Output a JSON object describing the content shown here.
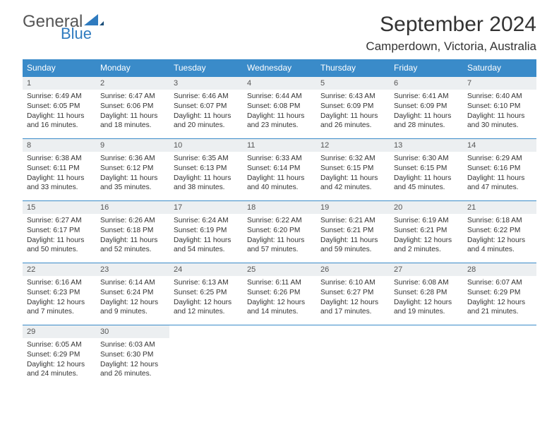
{
  "brand": {
    "general": "General",
    "blue": "Blue"
  },
  "title": "September 2024",
  "location": "Camperdown, Victoria, Australia",
  "colors": {
    "header_bg": "#3a8bc9",
    "header_text": "#ffffff",
    "daynum_bg": "#eceff1",
    "border": "#3a8bc9",
    "logo_blue": "#2f7bbf"
  },
  "day_headers": [
    "Sunday",
    "Monday",
    "Tuesday",
    "Wednesday",
    "Thursday",
    "Friday",
    "Saturday"
  ],
  "weeks": [
    [
      {
        "n": "1",
        "sunrise": "Sunrise: 6:49 AM",
        "sunset": "Sunset: 6:05 PM",
        "daylight": "Daylight: 11 hours and 16 minutes."
      },
      {
        "n": "2",
        "sunrise": "Sunrise: 6:47 AM",
        "sunset": "Sunset: 6:06 PM",
        "daylight": "Daylight: 11 hours and 18 minutes."
      },
      {
        "n": "3",
        "sunrise": "Sunrise: 6:46 AM",
        "sunset": "Sunset: 6:07 PM",
        "daylight": "Daylight: 11 hours and 20 minutes."
      },
      {
        "n": "4",
        "sunrise": "Sunrise: 6:44 AM",
        "sunset": "Sunset: 6:08 PM",
        "daylight": "Daylight: 11 hours and 23 minutes."
      },
      {
        "n": "5",
        "sunrise": "Sunrise: 6:43 AM",
        "sunset": "Sunset: 6:09 PM",
        "daylight": "Daylight: 11 hours and 26 minutes."
      },
      {
        "n": "6",
        "sunrise": "Sunrise: 6:41 AM",
        "sunset": "Sunset: 6:09 PM",
        "daylight": "Daylight: 11 hours and 28 minutes."
      },
      {
        "n": "7",
        "sunrise": "Sunrise: 6:40 AM",
        "sunset": "Sunset: 6:10 PM",
        "daylight": "Daylight: 11 hours and 30 minutes."
      }
    ],
    [
      {
        "n": "8",
        "sunrise": "Sunrise: 6:38 AM",
        "sunset": "Sunset: 6:11 PM",
        "daylight": "Daylight: 11 hours and 33 minutes."
      },
      {
        "n": "9",
        "sunrise": "Sunrise: 6:36 AM",
        "sunset": "Sunset: 6:12 PM",
        "daylight": "Daylight: 11 hours and 35 minutes."
      },
      {
        "n": "10",
        "sunrise": "Sunrise: 6:35 AM",
        "sunset": "Sunset: 6:13 PM",
        "daylight": "Daylight: 11 hours and 38 minutes."
      },
      {
        "n": "11",
        "sunrise": "Sunrise: 6:33 AM",
        "sunset": "Sunset: 6:14 PM",
        "daylight": "Daylight: 11 hours and 40 minutes."
      },
      {
        "n": "12",
        "sunrise": "Sunrise: 6:32 AM",
        "sunset": "Sunset: 6:15 PM",
        "daylight": "Daylight: 11 hours and 42 minutes."
      },
      {
        "n": "13",
        "sunrise": "Sunrise: 6:30 AM",
        "sunset": "Sunset: 6:15 PM",
        "daylight": "Daylight: 11 hours and 45 minutes."
      },
      {
        "n": "14",
        "sunrise": "Sunrise: 6:29 AM",
        "sunset": "Sunset: 6:16 PM",
        "daylight": "Daylight: 11 hours and 47 minutes."
      }
    ],
    [
      {
        "n": "15",
        "sunrise": "Sunrise: 6:27 AM",
        "sunset": "Sunset: 6:17 PM",
        "daylight": "Daylight: 11 hours and 50 minutes."
      },
      {
        "n": "16",
        "sunrise": "Sunrise: 6:26 AM",
        "sunset": "Sunset: 6:18 PM",
        "daylight": "Daylight: 11 hours and 52 minutes."
      },
      {
        "n": "17",
        "sunrise": "Sunrise: 6:24 AM",
        "sunset": "Sunset: 6:19 PM",
        "daylight": "Daylight: 11 hours and 54 minutes."
      },
      {
        "n": "18",
        "sunrise": "Sunrise: 6:22 AM",
        "sunset": "Sunset: 6:20 PM",
        "daylight": "Daylight: 11 hours and 57 minutes."
      },
      {
        "n": "19",
        "sunrise": "Sunrise: 6:21 AM",
        "sunset": "Sunset: 6:21 PM",
        "daylight": "Daylight: 11 hours and 59 minutes."
      },
      {
        "n": "20",
        "sunrise": "Sunrise: 6:19 AM",
        "sunset": "Sunset: 6:21 PM",
        "daylight": "Daylight: 12 hours and 2 minutes."
      },
      {
        "n": "21",
        "sunrise": "Sunrise: 6:18 AM",
        "sunset": "Sunset: 6:22 PM",
        "daylight": "Daylight: 12 hours and 4 minutes."
      }
    ],
    [
      {
        "n": "22",
        "sunrise": "Sunrise: 6:16 AM",
        "sunset": "Sunset: 6:23 PM",
        "daylight": "Daylight: 12 hours and 7 minutes."
      },
      {
        "n": "23",
        "sunrise": "Sunrise: 6:14 AM",
        "sunset": "Sunset: 6:24 PM",
        "daylight": "Daylight: 12 hours and 9 minutes."
      },
      {
        "n": "24",
        "sunrise": "Sunrise: 6:13 AM",
        "sunset": "Sunset: 6:25 PM",
        "daylight": "Daylight: 12 hours and 12 minutes."
      },
      {
        "n": "25",
        "sunrise": "Sunrise: 6:11 AM",
        "sunset": "Sunset: 6:26 PM",
        "daylight": "Daylight: 12 hours and 14 minutes."
      },
      {
        "n": "26",
        "sunrise": "Sunrise: 6:10 AM",
        "sunset": "Sunset: 6:27 PM",
        "daylight": "Daylight: 12 hours and 17 minutes."
      },
      {
        "n": "27",
        "sunrise": "Sunrise: 6:08 AM",
        "sunset": "Sunset: 6:28 PM",
        "daylight": "Daylight: 12 hours and 19 minutes."
      },
      {
        "n": "28",
        "sunrise": "Sunrise: 6:07 AM",
        "sunset": "Sunset: 6:29 PM",
        "daylight": "Daylight: 12 hours and 21 minutes."
      }
    ],
    [
      {
        "n": "29",
        "sunrise": "Sunrise: 6:05 AM",
        "sunset": "Sunset: 6:29 PM",
        "daylight": "Daylight: 12 hours and 24 minutes."
      },
      {
        "n": "30",
        "sunrise": "Sunrise: 6:03 AM",
        "sunset": "Sunset: 6:30 PM",
        "daylight": "Daylight: 12 hours and 26 minutes."
      },
      null,
      null,
      null,
      null,
      null
    ]
  ]
}
